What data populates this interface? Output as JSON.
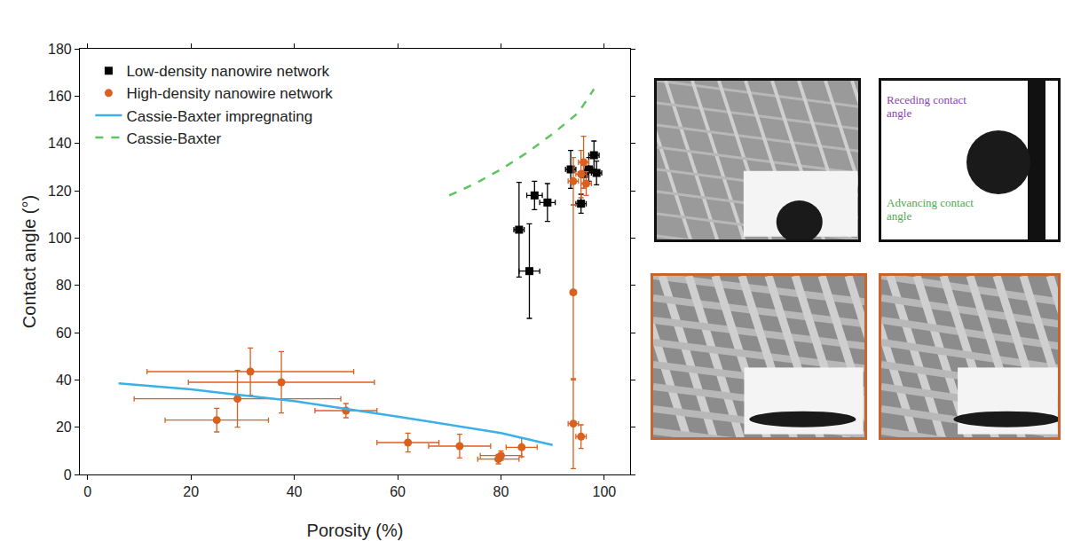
{
  "chart_data": {
    "type": "scatter",
    "x_label": "Porosity (%)",
    "y_label": "Contact angle (°)",
    "xlim": [
      -1.5,
      105
    ],
    "ylim": [
      0,
      180
    ],
    "xticks": [
      0,
      20,
      40,
      60,
      80,
      100
    ],
    "yticks": [
      0,
      20,
      40,
      60,
      80,
      100,
      120,
      140,
      160,
      180
    ],
    "grid": false,
    "legend": "top-left",
    "series": [
      {
        "name": "Low-density nanowire network",
        "type": "scatter",
        "marker": "square",
        "color": "#000000",
        "x": [
          83.5,
          85.5,
          86.5,
          89,
          93.5,
          95.5,
          96,
          97,
          98,
          98.5
        ],
        "values": [
          103.5,
          86,
          118,
          115,
          129,
          114.5,
          127,
          129,
          135,
          127.5
        ],
        "x_error": [
          1,
          2,
          1.5,
          1.5,
          1,
          1,
          1,
          1,
          1,
          1
        ],
        "y_error": [
          20,
          20,
          6,
          8,
          8,
          4,
          6,
          5,
          6,
          5
        ]
      },
      {
        "name": "High-density nanowire network",
        "type": "scatter",
        "marker": "circle",
        "color": "#d9601e",
        "x": [
          25,
          29,
          31.5,
          37.5,
          50,
          62,
          72,
          79.5,
          80,
          84,
          94,
          94,
          94,
          95.5,
          95.5,
          96,
          96.5
        ],
        "values": [
          23,
          32,
          43.5,
          39,
          27,
          13.5,
          12,
          6.5,
          8,
          11.5,
          21.5,
          77,
          124,
          16,
          127,
          132,
          123
        ],
        "x_error": [
          10,
          20,
          20,
          18,
          6,
          6,
          6,
          4,
          4,
          3,
          1,
          0.5,
          1,
          1,
          1,
          1,
          1
        ],
        "y_error": [
          5,
          12,
          10,
          13,
          3,
          4,
          5,
          2,
          2,
          4,
          19,
          37,
          10,
          5,
          10,
          11,
          5
        ]
      },
      {
        "name": "Cassie-Baxter impregnating",
        "type": "line",
        "line_style": "solid",
        "color": "#3ab0e8",
        "x": [
          6,
          20,
          40,
          60,
          80,
          90
        ],
        "values": [
          38.5,
          36,
          31,
          24.5,
          17.5,
          12.5
        ]
      },
      {
        "name": "Cassie-Baxter",
        "type": "line",
        "line_style": "dash",
        "color": "#5ec45e",
        "x": [
          70,
          75,
          80,
          85,
          90,
          95,
          98
        ],
        "values": [
          118,
          123,
          129,
          136,
          144,
          153,
          163
        ]
      }
    ]
  },
  "panels": [
    {
      "texts": []
    },
    {
      "texts": [
        "Receding contact angle",
        "Advancing contact angle"
      ]
    },
    {
      "texts": []
    },
    {
      "texts": []
    }
  ]
}
